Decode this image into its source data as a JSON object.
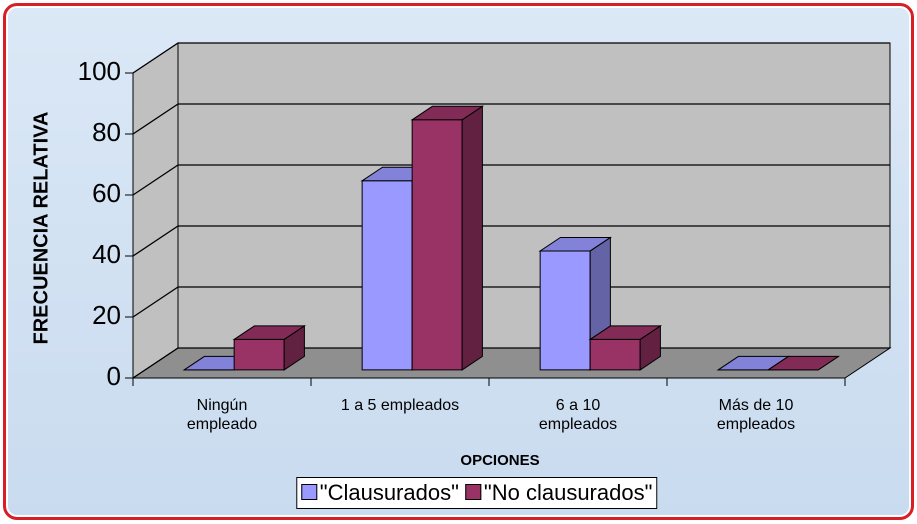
{
  "chart_data": {
    "type": "bar3d",
    "x_label": "OPCIONES",
    "y_label": "FRECUENCIA RELATIVA",
    "categories": [
      "Ningún\nempleado",
      "1 a 5 empleados",
      "6 a 10\nempleados",
      "Más de 10\nempleados"
    ],
    "series": [
      {
        "name": "\"Clausurados\"",
        "color": "#9999ff",
        "values": [
          0,
          62,
          39,
          0
        ]
      },
      {
        "name": "\"No clausurados\"",
        "color": "#993366",
        "values": [
          10,
          82,
          10,
          0
        ]
      }
    ],
    "ylim": [
      0,
      100
    ],
    "yticks": [
      0,
      20,
      40,
      60,
      80,
      100
    ],
    "grid": true,
    "legend": "bottom"
  }
}
